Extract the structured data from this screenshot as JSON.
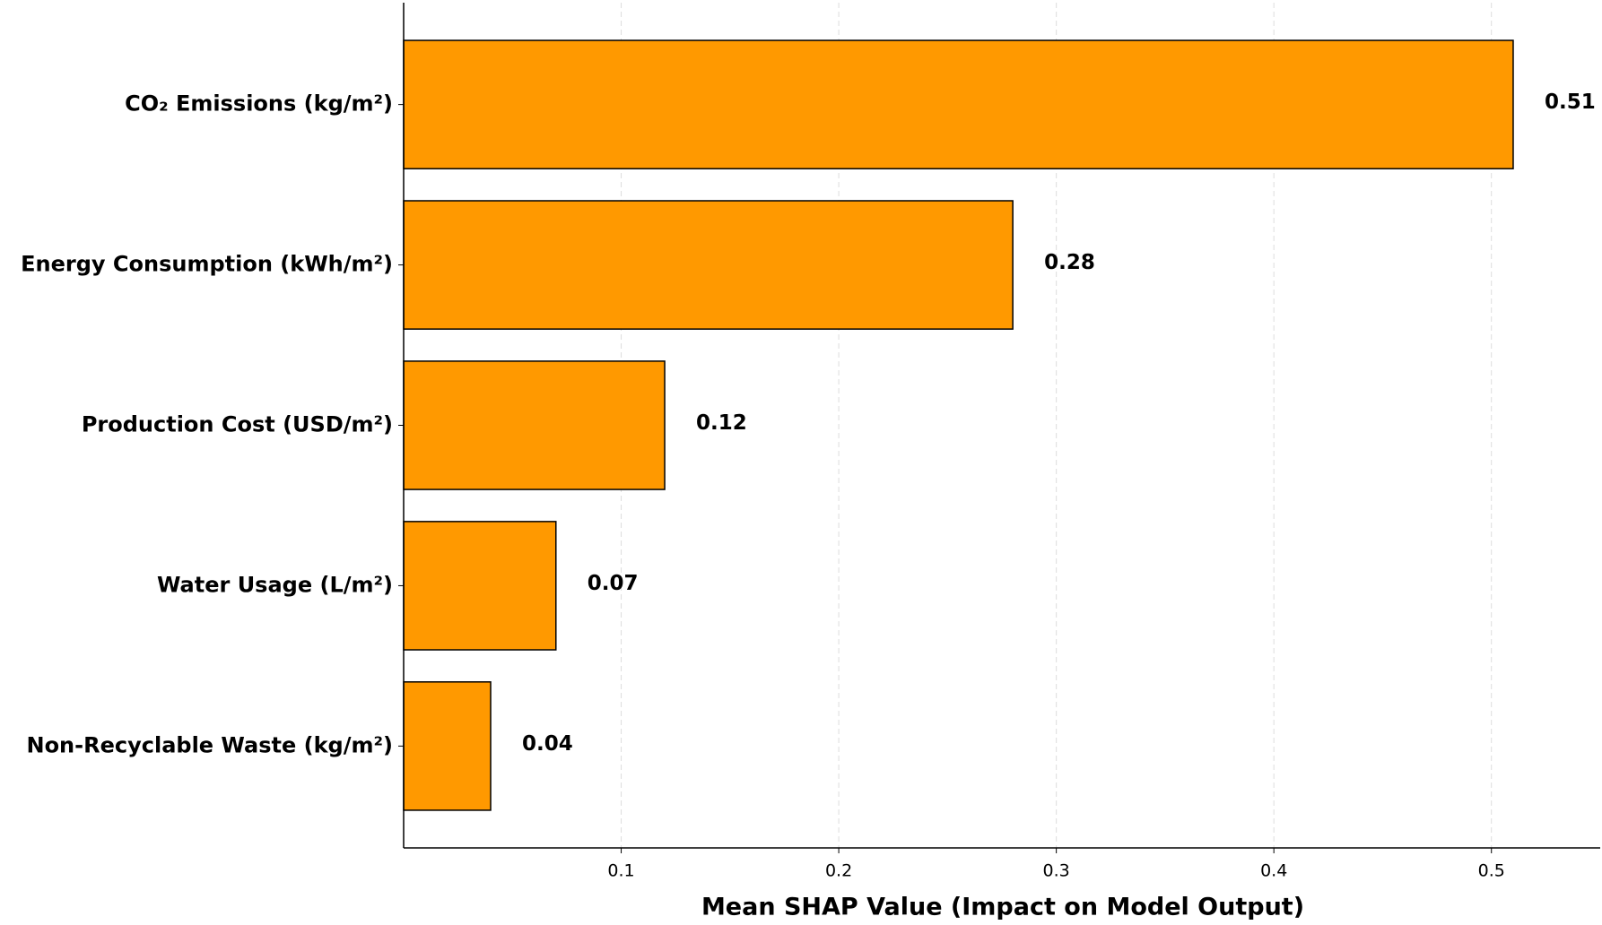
{
  "chart_data": {
    "type": "bar",
    "orientation": "horizontal",
    "x_label": "Mean SHAP Value (Impact on Model Output)",
    "categories": [
      "CO₂ Emissions (kg/m²)",
      "Energy Consumption (kWh/m²)",
      "Production Cost (USD/m²)",
      "Water Usage (L/m²)",
      "Non-Recyclable Waste (kg/m²)"
    ],
    "values": [
      0.51,
      0.28,
      0.12,
      0.07,
      0.04
    ],
    "color": "#ff9900",
    "edge_color": "#000000",
    "xlim": [
      0,
      0.55
    ],
    "xticks": [
      0.1,
      0.2,
      0.3,
      0.4,
      0.5
    ],
    "grid": true
  }
}
